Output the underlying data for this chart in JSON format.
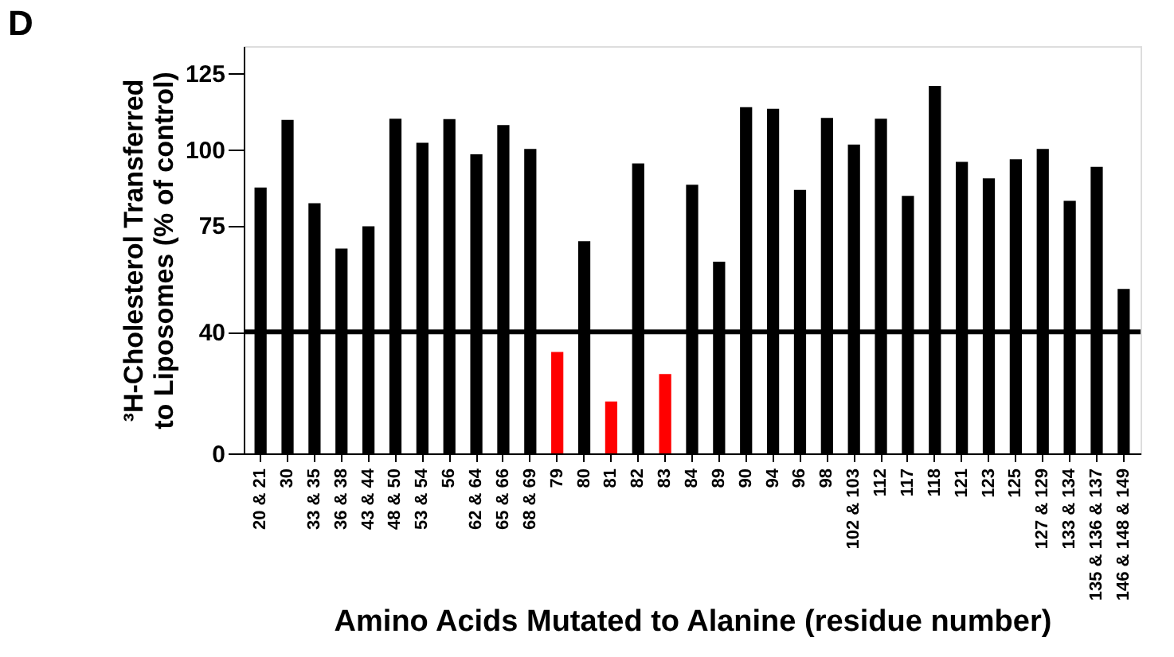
{
  "chart_data": {
    "type": "bar",
    "title": "D",
    "xlabel": "Amino Acids Mutated to Alanine (residue number)",
    "ylabel": "³H-Cholesterol Transferred\nto Liposomes (% of control)",
    "categories": [
      "20 & 21",
      "30",
      "33 & 35",
      "36 & 38",
      "43 & 44",
      "48 & 50",
      "53 & 54",
      "56",
      "62 & 64",
      "65 & 66",
      "68 & 69",
      "79",
      "80",
      "81",
      "82",
      "83",
      "84",
      "89",
      "90",
      "94",
      "96",
      "98",
      "102 & 103",
      "112",
      "117",
      "118",
      "121",
      "123",
      "125",
      "127 & 129",
      "133 & 134",
      "135 & 136 & 137",
      "146 & 148 & 149"
    ],
    "values": [
      87.5,
      109.7,
      82.3,
      67.4,
      74.7,
      110.1,
      102.2,
      110,
      98.4,
      108,
      100.2,
      33.4,
      69.8,
      17.1,
      95.4,
      26.1,
      88.4,
      63.1,
      113.9,
      113.4,
      86.7,
      110.4,
      101.6,
      110.1,
      84.7,
      120.9,
      95.9,
      90.5,
      96.8,
      100.2,
      83.1,
      94.3,
      54.1
    ],
    "colors": [
      "#000000",
      "#000000",
      "#000000",
      "#000000",
      "#000000",
      "#000000",
      "#000000",
      "#000000",
      "#000000",
      "#000000",
      "#000000",
      "#ff0000",
      "#000000",
      "#ff0000",
      "#000000",
      "#ff0000",
      "#000000",
      "#000000",
      "#000000",
      "#000000",
      "#000000",
      "#000000",
      "#000000",
      "#000000",
      "#000000",
      "#000000",
      "#000000",
      "#000000",
      "#000000",
      "#000000",
      "#000000",
      "#000000",
      "#000000"
    ],
    "ylim": [
      0,
      134
    ],
    "yticks": [
      0,
      40,
      75,
      100,
      125
    ],
    "ref_lines": [
      {
        "axis": "y",
        "value": 40,
        "color": "#000000"
      }
    ],
    "grid": false
  }
}
